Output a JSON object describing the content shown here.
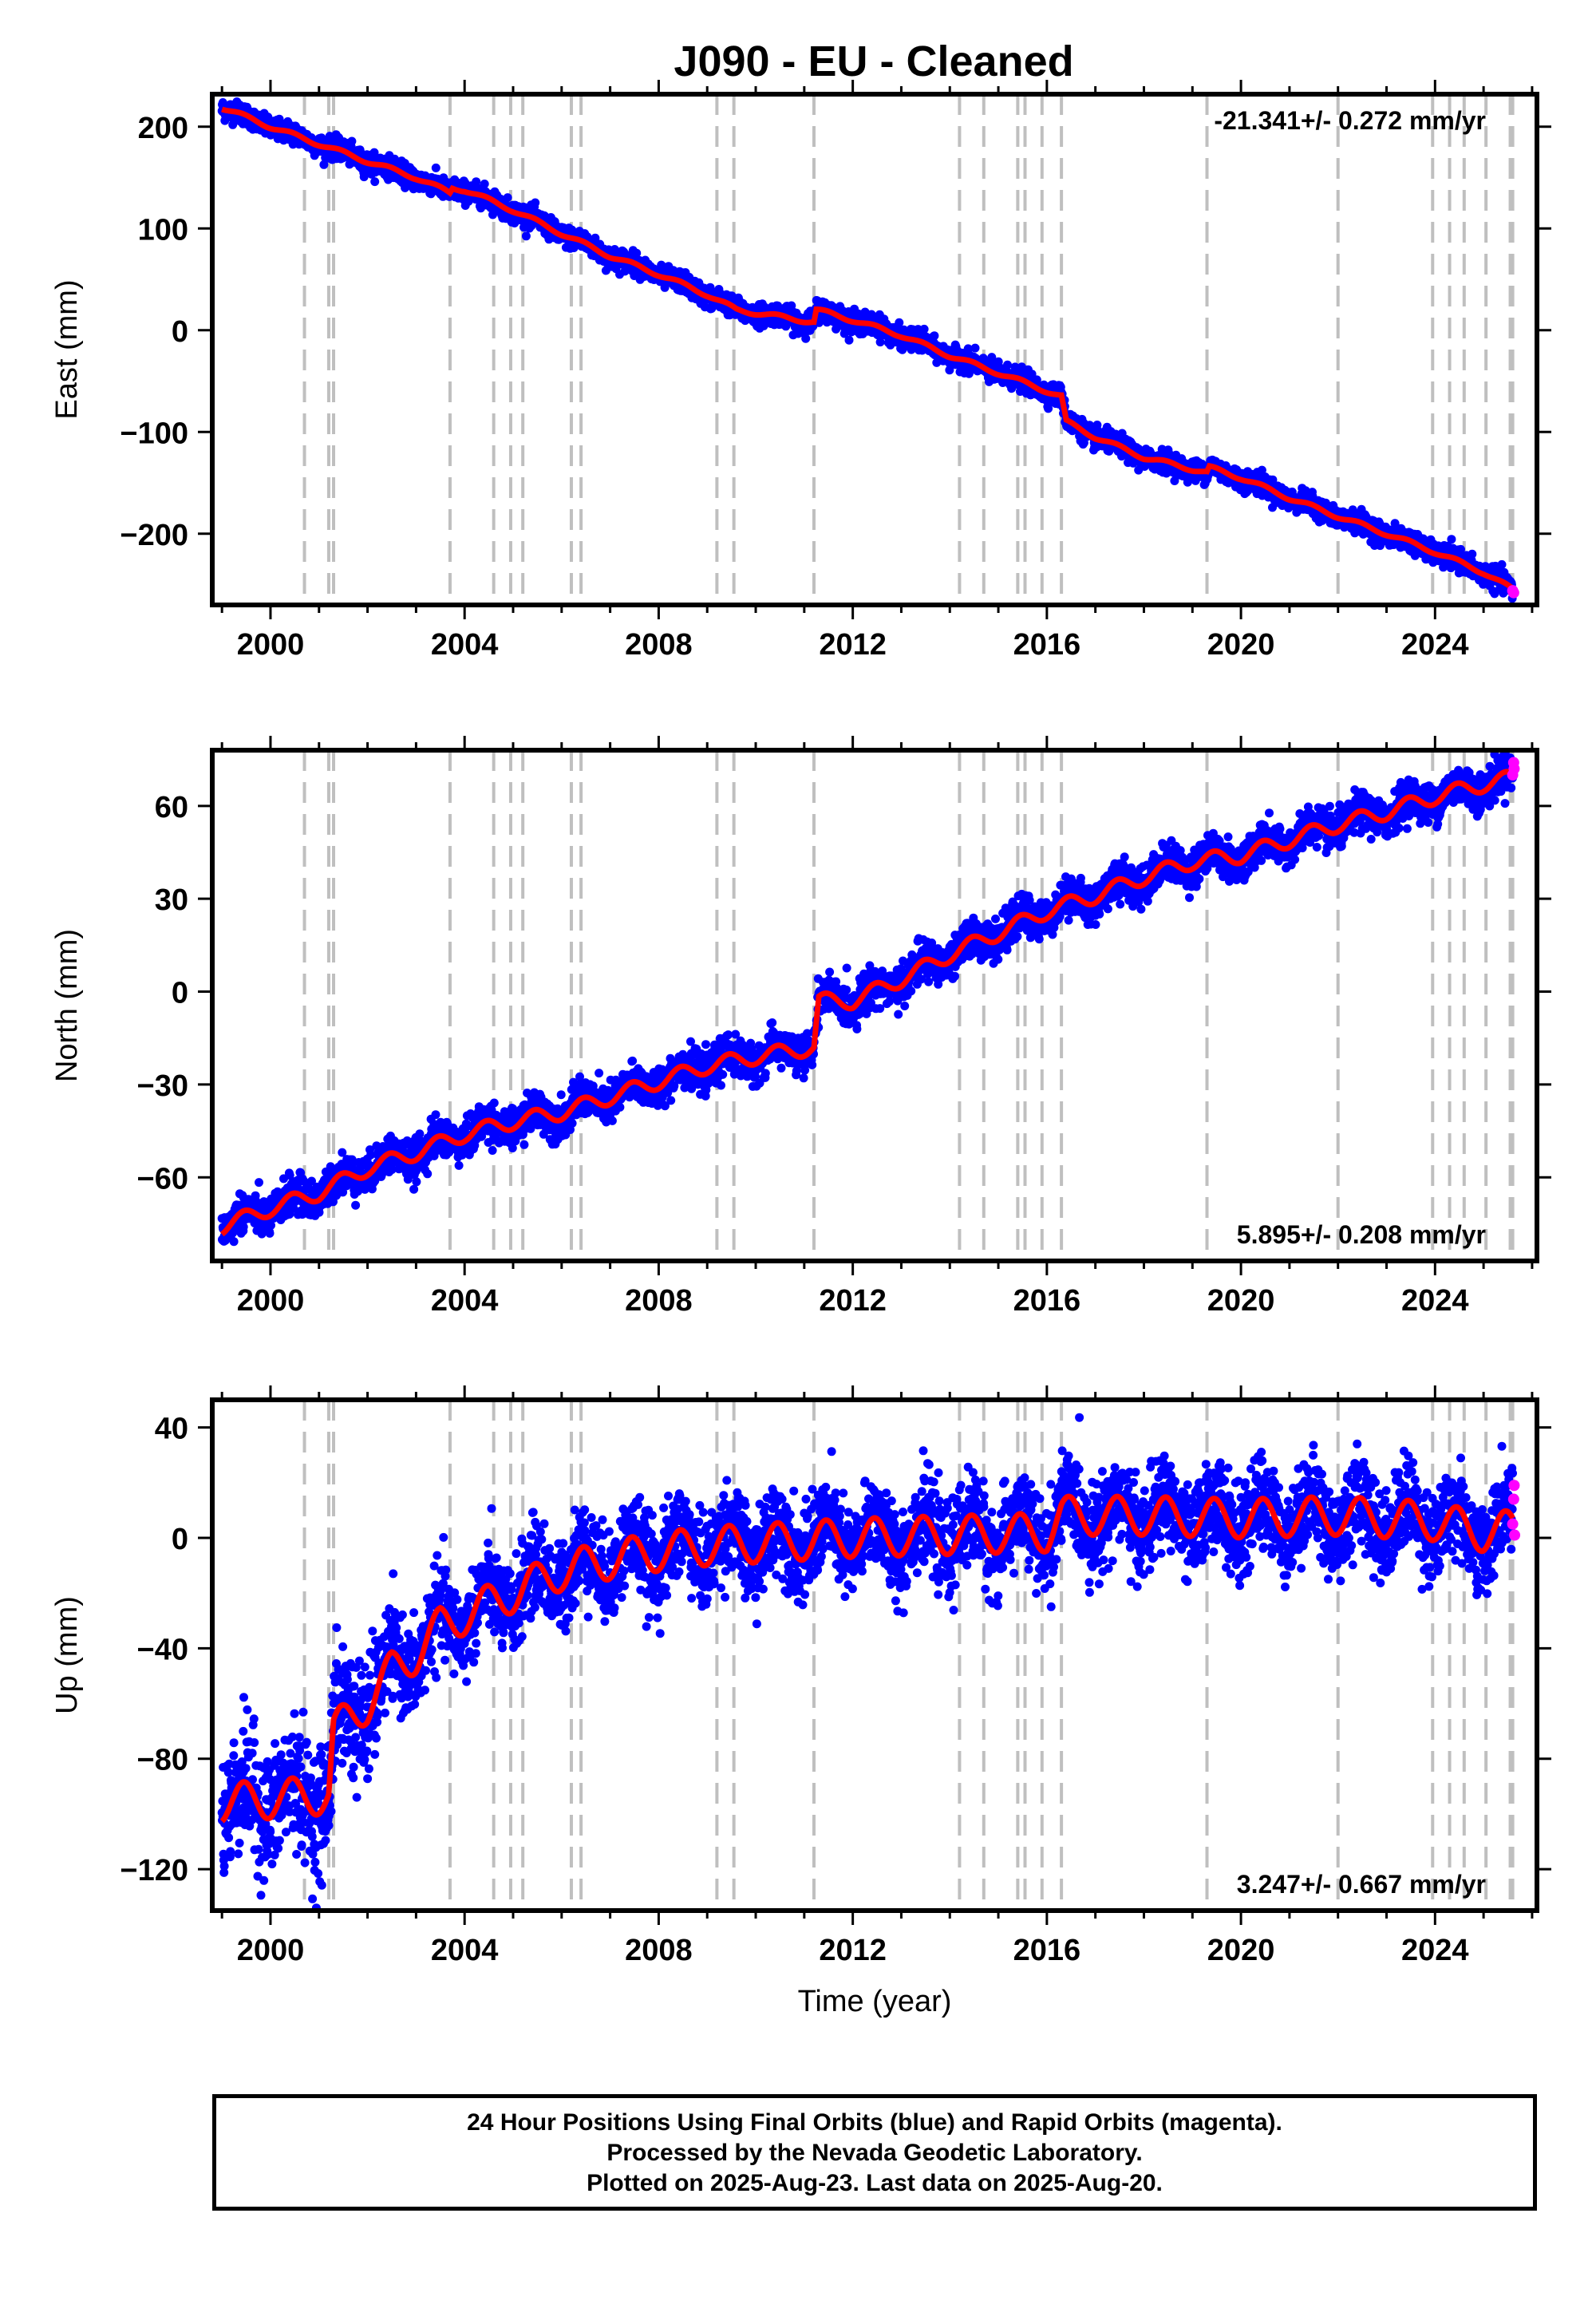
{
  "title": "J090  - EU - Cleaned",
  "footer": {
    "line1": "24 Hour Positions Using Final Orbits (blue) and Rapid Orbits (magenta).",
    "line2": "Processed by the Nevada Geodetic Laboratory.",
    "line3": "Plotted on 2025-Aug-23. Last data on 2025-Aug-20."
  },
  "colors": {
    "final_orbits": "#0000ff",
    "rapid_orbits": "#ff00ff",
    "model": "#ff0000",
    "steps": "#bfbfbf"
  },
  "chart_data": [
    {
      "type": "scatter",
      "name": "east",
      "ylabel": "East (mm)",
      "xlabel": "",
      "rate_text": "-21.341+/- 0.272 mm/yr",
      "rate_position": "top-right",
      "xlim": [
        1998.8,
        2026.1
      ],
      "ylim": [
        -270,
        232
      ],
      "xticks": [
        2000,
        2004,
        2008,
        2012,
        2016,
        2020,
        2024
      ],
      "xtick_labels": [
        "2000",
        "2004",
        "2008",
        "2012",
        "2016",
        "2020",
        "2024"
      ],
      "yticks": [
        -200,
        -100,
        0,
        100,
        200
      ],
      "ytick_labels": [
        "−200",
        "−100",
        "0",
        "100",
        "200"
      ],
      "grid": false,
      "model_trend": [
        [
          1999.0,
          219
        ],
        [
          2000.0,
          200
        ],
        [
          2001.0,
          183
        ],
        [
          2002.0,
          166
        ],
        [
          2003.0,
          150
        ],
        [
          2003.7,
          135
        ],
        [
          2003.75,
          140
        ],
        [
          2004.0,
          138
        ],
        [
          2005.0,
          118
        ],
        [
          2006.0,
          95
        ],
        [
          2007.0,
          73
        ],
        [
          2008.0,
          55
        ],
        [
          2009.0,
          35
        ],
        [
          2009.6,
          20
        ],
        [
          2011.2,
          8
        ],
        [
          2011.25,
          20
        ],
        [
          2012.0,
          10
        ],
        [
          2013.0,
          -5
        ],
        [
          2014.0,
          -25
        ],
        [
          2015.0,
          -42
        ],
        [
          2016.3,
          -65
        ],
        [
          2016.4,
          -90
        ],
        [
          2017.0,
          -105
        ],
        [
          2018.0,
          -125
        ],
        [
          2019.3,
          -140
        ],
        [
          2019.35,
          -135
        ],
        [
          2020.0,
          -145
        ],
        [
          2021.0,
          -165
        ],
        [
          2022.0,
          -183
        ],
        [
          2023.0,
          -200
        ],
        [
          2024.0,
          -218
        ],
        [
          2025.0,
          -238
        ],
        [
          2025.6,
          -255
        ]
      ],
      "seasonal_amplitude": 2,
      "scatter_spread": 5,
      "rapid_points": [
        [
          2025.6,
          -256
        ],
        [
          2025.62,
          -258
        ]
      ]
    },
    {
      "type": "scatter",
      "name": "north",
      "ylabel": "North (mm)",
      "xlabel": "",
      "rate_text": "5.895+/- 0.208 mm/yr",
      "rate_position": "bottom-right",
      "xlim": [
        1998.8,
        2026.1
      ],
      "ylim": [
        -87,
        78
      ],
      "xticks": [
        2000,
        2004,
        2008,
        2012,
        2016,
        2020,
        2024
      ],
      "xtick_labels": [
        "2000",
        "2004",
        "2008",
        "2012",
        "2016",
        "2020",
        "2024"
      ],
      "yticks": [
        -60,
        -30,
        0,
        30,
        60
      ],
      "ytick_labels": [
        "−60",
        "−30",
        "0",
        "30",
        "60"
      ],
      "grid": false,
      "model_trend": [
        [
          1999.0,
          -76
        ],
        [
          2000.0,
          -70
        ],
        [
          2001.0,
          -65
        ],
        [
          2002.0,
          -57
        ],
        [
          2003.0,
          -52
        ],
        [
          2004.0,
          -46
        ],
        [
          2005.0,
          -42
        ],
        [
          2006.0,
          -39
        ],
        [
          2007.0,
          -34
        ],
        [
          2008.0,
          -29
        ],
        [
          2009.0,
          -24
        ],
        [
          2010.0,
          -21
        ],
        [
          2011.2,
          -18
        ],
        [
          2011.3,
          -3
        ],
        [
          2012.0,
          -3
        ],
        [
          2013.0,
          4
        ],
        [
          2014.0,
          12
        ],
        [
          2015.0,
          19
        ],
        [
          2016.0,
          26
        ],
        [
          2017.0,
          31
        ],
        [
          2018.0,
          37
        ],
        [
          2019.0,
          42
        ],
        [
          2020.0,
          44
        ],
        [
          2021.0,
          49
        ],
        [
          2022.0,
          54
        ],
        [
          2023.0,
          58
        ],
        [
          2024.0,
          63
        ],
        [
          2025.0,
          67
        ],
        [
          2025.6,
          69
        ]
      ],
      "seasonal_amplitude": 2.5,
      "scatter_spread": 3,
      "rapid_points": [
        [
          2025.6,
          70
        ],
        [
          2025.62,
          74
        ],
        [
          2025.63,
          72
        ]
      ]
    },
    {
      "type": "scatter",
      "name": "up",
      "ylabel": "Up (mm)",
      "xlabel": "Time (year)",
      "rate_text": "3.247+/- 0.667 mm/yr",
      "rate_position": "bottom-right",
      "xlim": [
        1998.8,
        2026.1
      ],
      "ylim": [
        -135,
        50
      ],
      "xticks": [
        2000,
        2004,
        2008,
        2012,
        2016,
        2020,
        2024
      ],
      "xtick_labels": [
        "2000",
        "2004",
        "2008",
        "2012",
        "2016",
        "2020",
        "2024"
      ],
      "yticks": [
        -120,
        -80,
        -40,
        0,
        40
      ],
      "ytick_labels": [
        "−120",
        "−80",
        "−40",
        "0",
        "40"
      ],
      "grid": false,
      "model_trend": [
        [
          1999.0,
          -96
        ],
        [
          2001.2,
          -93
        ],
        [
          2001.3,
          -70
        ],
        [
          2002.0,
          -60
        ],
        [
          2002.5,
          -48
        ],
        [
          2003.0,
          -42
        ],
        [
          2003.5,
          -32
        ],
        [
          2004.0,
          -28
        ],
        [
          2005.0,
          -20
        ],
        [
          2006.0,
          -12
        ],
        [
          2007.0,
          -8
        ],
        [
          2008.0,
          -5
        ],
        [
          2009.0,
          -3
        ],
        [
          2010.0,
          -2
        ],
        [
          2012.0,
          0
        ],
        [
          2014.0,
          1
        ],
        [
          2016.0,
          2
        ],
        [
          2016.3,
          8
        ],
        [
          2018.0,
          8
        ],
        [
          2020.0,
          7
        ],
        [
          2022.0,
          8
        ],
        [
          2024.0,
          6
        ],
        [
          2025.0,
          2
        ],
        [
          2025.6,
          3
        ]
      ],
      "seasonal_amplitude": 7,
      "scatter_spread": 8,
      "rapid_points": [
        [
          2025.6,
          5
        ],
        [
          2025.62,
          14
        ],
        [
          2025.63,
          19
        ],
        [
          2025.64,
          1
        ]
      ]
    }
  ],
  "step_epochs": [
    2000.7,
    2001.2,
    2001.3,
    2003.7,
    2004.6,
    2004.95,
    2005.2,
    2006.2,
    2006.4,
    2009.2,
    2009.55,
    2011.2,
    2014.2,
    2014.7,
    2015.4,
    2015.55,
    2015.9,
    2016.3,
    2019.3,
    2022.0,
    2023.95,
    2024.3,
    2024.6,
    2025.05,
    2025.55,
    2025.6
  ]
}
